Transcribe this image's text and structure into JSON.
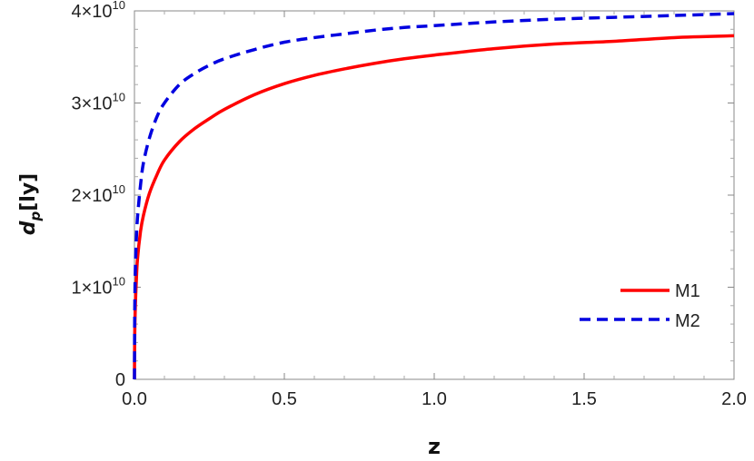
{
  "chart_data": {
    "type": "line",
    "title": "",
    "xlabel": "z",
    "ylabel_main": "d",
    "ylabel_sub": "p",
    "ylabel_unit": "[ly]",
    "xlim": [
      0,
      2
    ],
    "ylim": [
      0,
      40000000000.0
    ],
    "x_ticks": [
      {
        "value": 0,
        "label": "0.0"
      },
      {
        "value": 0.5,
        "label": "0.5"
      },
      {
        "value": 1.0,
        "label": "1.0"
      },
      {
        "value": 1.5,
        "label": "1.5"
      },
      {
        "value": 2.0,
        "label": "2.0"
      }
    ],
    "y_ticks": [
      {
        "value": 0,
        "mantissa": "0",
        "exponent": ""
      },
      {
        "value": 10000000000.0,
        "mantissa": "1×10",
        "exponent": "10"
      },
      {
        "value": 20000000000.0,
        "mantissa": "2×10",
        "exponent": "10"
      },
      {
        "value": 30000000000.0,
        "mantissa": "3×10",
        "exponent": "10"
      },
      {
        "value": 40000000000.0,
        "mantissa": "4×10",
        "exponent": "10"
      }
    ],
    "grid": false,
    "legend_position": "bottom-right",
    "series": [
      {
        "name": "M1",
        "color": "#ff0000",
        "dash": "solid",
        "x": [
          0,
          0.001,
          0.003,
          0.006,
          0.01,
          0.02,
          0.03,
          0.05,
          0.075,
          0.1,
          0.15,
          0.2,
          0.25,
          0.3,
          0.4,
          0.5,
          0.6,
          0.7,
          0.8,
          0.9,
          1.0,
          1.2,
          1.4,
          1.6,
          1.8,
          2.0
        ],
        "y": [
          0,
          5000000000.0,
          8000000000.0,
          10500000000.0,
          13000000000.0,
          16000000000.0,
          17800000000.0,
          20200000000.0,
          22200000000.0,
          23800000000.0,
          25800000000.0,
          27200000000.0,
          28300000000.0,
          29300000000.0,
          30900000000.0,
          32100000000.0,
          33000000000.0,
          33700000000.0,
          34300000000.0,
          34800000000.0,
          35200000000.0,
          35900000000.0,
          36400000000.0,
          36700000000.0,
          37100000000.0,
          37300000000.0
        ]
      },
      {
        "name": "M2",
        "color": "#0000e0",
        "dash": "dashed",
        "x": [
          0,
          0.001,
          0.003,
          0.006,
          0.01,
          0.02,
          0.03,
          0.05,
          0.075,
          0.1,
          0.15,
          0.2,
          0.25,
          0.3,
          0.4,
          0.5,
          0.6,
          0.7,
          0.8,
          0.9,
          1.0,
          1.2,
          1.4,
          1.6,
          1.8,
          2.0
        ],
        "y": [
          0,
          7500000000.0,
          12000000000.0,
          15000000000.0,
          17500000000.0,
          21000000000.0,
          23500000000.0,
          26200000000.0,
          28500000000.0,
          30000000000.0,
          32000000000.0,
          33200000000.0,
          34100000000.0,
          34800000000.0,
          35800000000.0,
          36600000000.0,
          37100000000.0,
          37500000000.0,
          37900000000.0,
          38200000000.0,
          38400000000.0,
          38800000000.0,
          39100000000.0,
          39300000000.0,
          39500000000.0,
          39700000000.0
        ]
      }
    ]
  }
}
